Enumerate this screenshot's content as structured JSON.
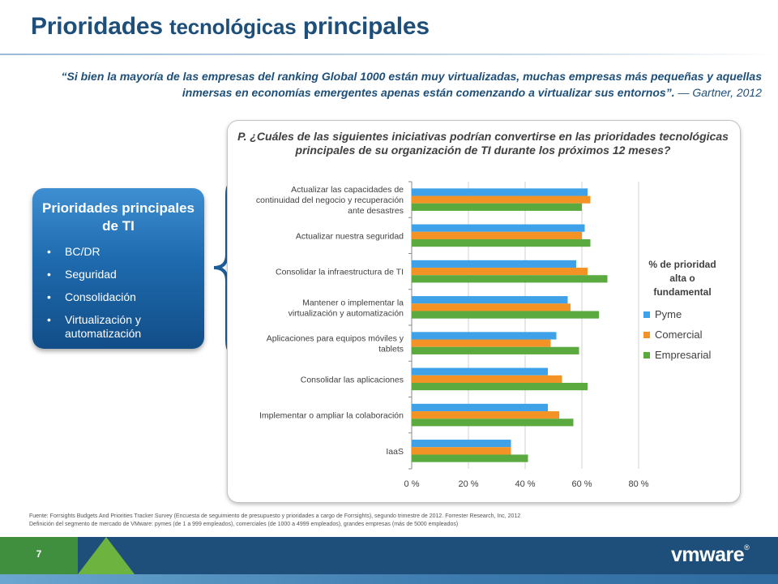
{
  "header": {
    "title_part1": "Prioridades",
    "title_part2": "tecnológicas",
    "title_part3": "principales"
  },
  "quote": {
    "text": "“Si bien la mayoría de las empresas del ranking Global 1000 están muy virtualizadas, muchas empresas más pequeñas y aquellas inmersas en economías emergentes apenas están comenzando a virtualizar sus entornos”.",
    "source": " — Gartner, 2012"
  },
  "priorities_box": {
    "title": "Prioridades principales de TI",
    "items": [
      "BC/DR",
      "Seguridad",
      "Consolidación",
      "Virtualización y automatización"
    ]
  },
  "chart_data": {
    "type": "bar",
    "orientation": "horizontal",
    "title": "P. ¿Cuáles de las siguientes iniciativas podrían convertirse en las prioridades tecnológicas principales de su organización de TI durante los próximos 12 meses?",
    "categories": [
      "Actualizar las capacidades de continuidad del negocio y recuperación ante desastres",
      "Actualizar nuestra seguridad",
      "Consolidar la infraestructura de TI",
      "Mantener o implementar la virtualización y automatización",
      "Aplicaciones para equipos móviles y tablets",
      "Consolidar las aplicaciones",
      "Implementar o ampliar la colaboración",
      "IaaS"
    ],
    "category_lines": [
      [
        "Actualizar las capacidades de",
        "continuidad del negocio y recuperación",
        "ante desastres"
      ],
      [
        "Actualizar nuestra seguridad"
      ],
      [
        "Consolidar la infraestructura de TI"
      ],
      [
        "Mantener o implementar la",
        "virtualización y automatización"
      ],
      [
        "Aplicaciones para equipos móviles y",
        "tablets"
      ],
      [
        "Consolidar las aplicaciones"
      ],
      [
        "Implementar o ampliar la colaboración"
      ],
      [
        "IaaS"
      ]
    ],
    "series": [
      {
        "name": "Pyme",
        "color": "#3fa2e8",
        "values": [
          62,
          61,
          58,
          55,
          51,
          48,
          48,
          35
        ]
      },
      {
        "name": "Comercial",
        "color": "#f39326",
        "values": [
          63,
          60,
          62,
          56,
          49,
          53,
          52,
          35
        ]
      },
      {
        "name": "Empresarial",
        "color": "#5aaa3f",
        "values": [
          60,
          63,
          69,
          66,
          59,
          62,
          57,
          41
        ]
      }
    ],
    "xlim": [
      0,
      80
    ],
    "xticks": [
      "0 %",
      "20 %",
      "40 %",
      "60 %",
      "80 %"
    ],
    "legend_title": "% de prioridad alta o fundamental",
    "legend_title_lines": [
      "% de prioridad",
      "alta o",
      "fundamental"
    ],
    "legend_position": "right",
    "grid": "vertical"
  },
  "footnote": {
    "line1": "Fuente: Forrsights Budgets And Priorities Tracker Survey (Encuesta de seguimiento de presupuesto y prioridades a cargo de Forrsights), segundo trimestre de 2012. Forrester Research, Inc, 2012",
    "line2": "Definición del segmento de mercado de VMware: pymes (de 1 a 999 empleados), comerciales (de 1000 a 4999 empleados), grandes empresas (más de 5000 empleados)"
  },
  "footer": {
    "page_number": "7",
    "logo_text": "vmware",
    "logo_mark": "®"
  },
  "colors": {
    "title": "#1d4f7a",
    "footer_bar": "#1d4f7a",
    "accent_green": "#3f8f3f"
  }
}
